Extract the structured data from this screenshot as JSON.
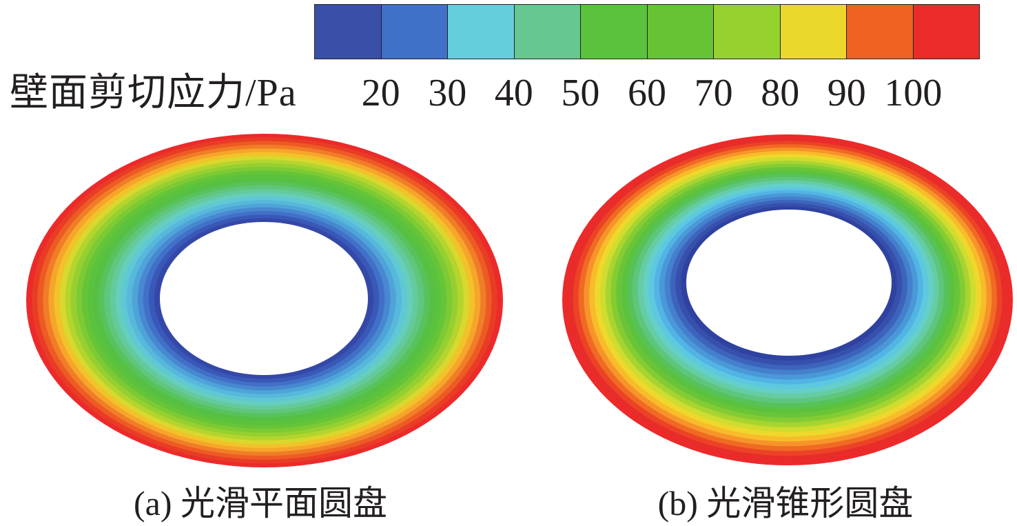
{
  "legend": {
    "label": "壁面剪切应力/Pa",
    "ticks": [
      "20",
      "30",
      "40",
      "50",
      "60",
      "70",
      "80",
      "90",
      "100"
    ],
    "colors": [
      "#3a4fa8",
      "#4170c8",
      "#66cddc",
      "#66c890",
      "#5ac23c",
      "#66c434",
      "#96d22e",
      "#ebd82a",
      "#f06222",
      "#ec2a2a"
    ]
  },
  "panels": [
    {
      "caption": "(a) 光滑平面圆盘",
      "ring_colors": [
        "#ec2a2a",
        "#e83c26",
        "#ee5a24",
        "#f07d28",
        "#f6a52a",
        "#f2c22a",
        "#d8d82e",
        "#b4d42e",
        "#96d030",
        "#7cca34",
        "#66c438",
        "#5ac23c",
        "#56c044",
        "#58c25c",
        "#60c67c",
        "#64ca9c",
        "#66cebc",
        "#60c8d4",
        "#58b8dc",
        "#4ea4d8",
        "#4888d0",
        "#4170c8",
        "#3a58b8",
        "#3448a8"
      ]
    },
    {
      "caption": "(b) 光滑锥形圆盘",
      "ring_colors": [
        "#ec2a2a",
        "#e82c2a",
        "#ec4226",
        "#f06a24",
        "#f6942a",
        "#f8bc2a",
        "#eed82c",
        "#cfdc30",
        "#a8d430",
        "#84cc34",
        "#6ac438",
        "#5ac23e",
        "#58c25a",
        "#5ec67c",
        "#66cca4",
        "#64d0c8",
        "#5ec8e0",
        "#52b4e4",
        "#4a98d8",
        "#4480cc",
        "#3d64bc",
        "#3650ac",
        "#2f42a0"
      ]
    }
  ]
}
